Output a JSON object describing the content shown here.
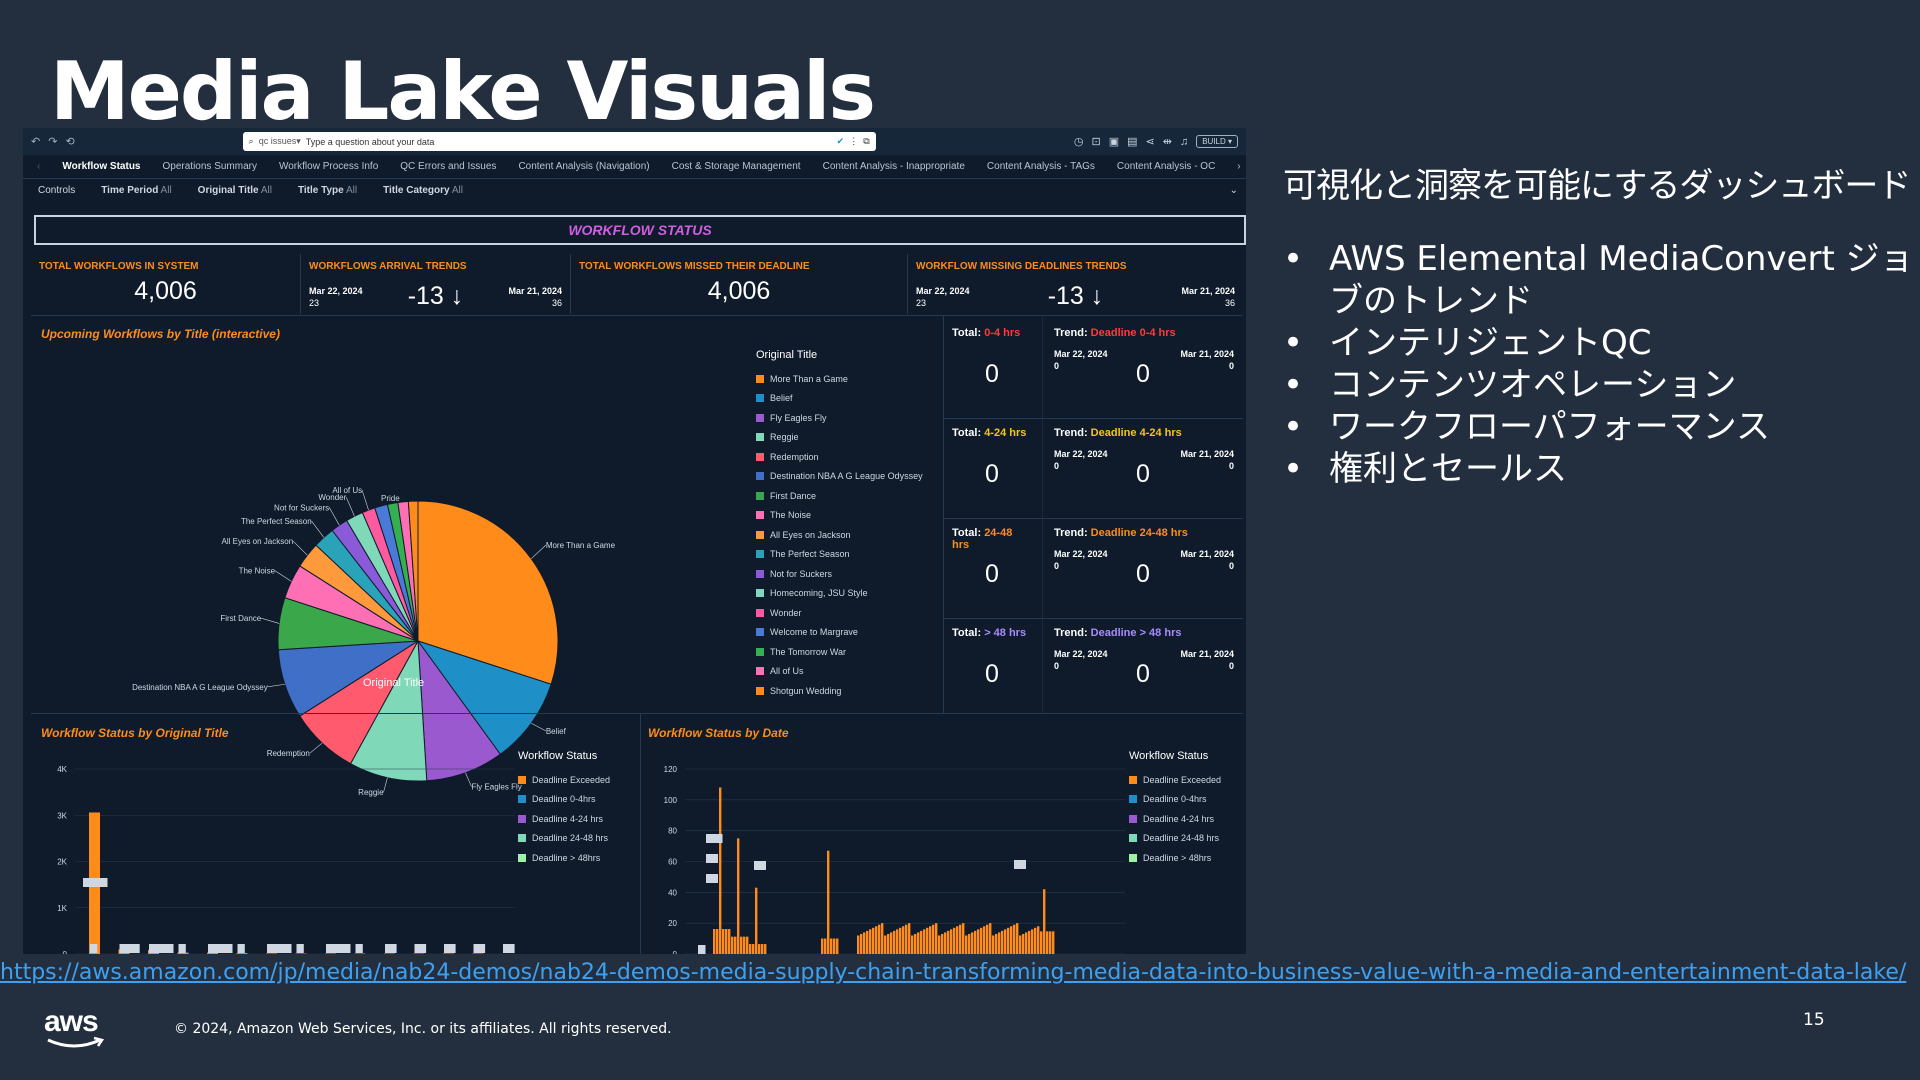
{
  "slide": {
    "title": "Media Lake Visuals",
    "heading": "可視化と洞察を可能にするダッシュボード",
    "bullets": [
      "AWS Elemental MediaConvert ジョブのトレンド",
      "インテリジェントQC",
      "コンテンツオペレーション",
      "ワークフローパフォーマンス",
      "権利とセールス"
    ],
    "url": "https://aws.amazon.com/jp/media/nab24-demos/nab24-demos-media-supply-chain-transforming-media-data-into-business-value-with-a-media-and-entertainment-data-lake/",
    "logo": "aws",
    "copyright": "© 2024, Amazon Web Services, Inc. or its affiliates. All rights reserved.",
    "page": "15"
  },
  "dashboard": {
    "search": {
      "tag": "qc issues▾",
      "placeholder": "Type a question about your data"
    },
    "build_label": "BUILD",
    "tabs": [
      "Workflow Status",
      "Operations Summary",
      "Workflow Process Info",
      "QC Errors and Issues",
      "Content Analysis (Navigation)",
      "Cost & Storage Management",
      "Content Analysis - Inappropriate",
      "Content Analysis - TAGs",
      "Content Analysis - OC"
    ],
    "controls": {
      "label": "Controls",
      "filters": [
        {
          "name": "Time Period",
          "value": "All"
        },
        {
          "name": "Original Title",
          "value": "All"
        },
        {
          "name": "Title Type",
          "value": "All"
        },
        {
          "name": "Title Category",
          "value": "All"
        }
      ]
    },
    "banner": "WORKFLOW STATUS",
    "kpis": {
      "total": {
        "label": "TOTAL WORKFLOWS IN SYSTEM",
        "value": "4,006"
      },
      "arrival": {
        "label": "WORKFLOWS ARRIVAL TRENDS",
        "left_date": "Mar 22, 2024",
        "left_val": "23",
        "value": "-13 ↓",
        "right_date": "Mar 21, 2024",
        "right_val": "36"
      },
      "missed": {
        "label": "TOTAL WORKFLOWS MISSED THEIR DEADLINE",
        "value": "4,006"
      },
      "missing": {
        "label": "WORKFLOW MISSING DEADLINES TRENDS",
        "left_date": "Mar 22, 2024",
        "left_val": "23",
        "value": "-13 ↓",
        "right_date": "Mar 21, 2024",
        "right_val": "36"
      }
    },
    "pie_panel": {
      "title": "Upcoming Workflows by Title",
      "title_suffix": "(interactive)",
      "axis_label": "Original Title"
    },
    "buckets": [
      {
        "total_label": "Total:",
        "range": "0-4 hrs",
        "trend_label": "Trend:",
        "trend": "Deadline 0-4 hrs",
        "color": "#ff3b3b",
        "d1": "Mar 22, 2024",
        "v1": "0",
        "d2": "Mar 21, 2024",
        "v2": "0",
        "value": "0",
        "trend_value": "0"
      },
      {
        "total_label": "Total:",
        "range": "4-24 hrs",
        "trend_label": "Trend:",
        "trend": "Deadline 4-24 hrs",
        "color": "#f5c518",
        "d1": "Mar 22, 2024",
        "v1": "0",
        "d2": "Mar 21, 2024",
        "v2": "0",
        "value": "0",
        "trend_value": "0"
      },
      {
        "total_label": "Total:",
        "range": "24-48 hrs",
        "trend_label": "Trend:",
        "trend": "Deadline 24-48 hrs",
        "color": "#ff8c1a",
        "d1": "Mar 22, 2024",
        "v1": "0",
        "d2": "Mar 21, 2024",
        "v2": "0",
        "value": "0",
        "trend_value": "0"
      },
      {
        "total_label": "Total:",
        "range": "> 48 hrs",
        "trend_label": "Trend:",
        "trend": "Deadline > 48 hrs",
        "color": "#a98bff",
        "d1": "Mar 22, 2024",
        "v1": "0",
        "d2": "Mar 21, 2024",
        "v2": "0",
        "value": "0",
        "trend_value": "0"
      }
    ],
    "bar1": {
      "title": "Workflow Status",
      "title_suffix": "by Original Title",
      "legend_title": "Workflow Status"
    },
    "bar2": {
      "title": "Workflow Status",
      "title_suffix": "by Date",
      "legend_title": "Workflow Status"
    },
    "status_legend": [
      {
        "name": "Deadline Exceeded",
        "color": "#ff8c1a"
      },
      {
        "name": "Deadline 0-4hrs",
        "color": "#1f8fc7"
      },
      {
        "name": "Deadline 4-24 hrs",
        "color": "#9b59d0"
      },
      {
        "name": "Deadline 24-48 hrs",
        "color": "#7fd8b8"
      },
      {
        "name": "Deadline > 48hrs",
        "color": "#9df2a8"
      }
    ]
  },
  "chart_data": [
    {
      "type": "pie",
      "title": "Upcoming Workflows by Title (interactive)",
      "legend_title": "Original Title",
      "categories": [
        "More Than a Game",
        "Belief",
        "Fly Eagles Fly",
        "Reggie",
        "Redemption",
        "Destination NBA A G League Odyssey",
        "First Dance",
        "The Noise",
        "All Eyes on Jackson",
        "The Perfect Season",
        "Not for Suckers",
        "Homecoming, JSU Style",
        "Wonder",
        "Welcome to Margrave",
        "The Tomorrow War",
        "All of Us",
        "Shotgun Wedding"
      ],
      "pie_labels": [
        "More Than a Game",
        "Belief",
        "Fly Eagles Fly",
        "Reggie",
        "Redemption",
        "Destination NBA A G League Odyssey",
        "First Dance",
        "The Noise",
        "All Eyes on Jackson",
        "The Perfect Season",
        "Not for Suckers",
        "Wonder",
        "All of Us",
        "Pride"
      ],
      "colors": [
        "#ff8c1a",
        "#1f8fc7",
        "#9b59d0",
        "#7fd8b8",
        "#ff5a6e",
        "#3f6fc7",
        "#3aa84a",
        "#ff6fb4",
        "#ff9a3c",
        "#2aa3b8",
        "#8a5ad8",
        "#7fd8b8",
        "#ff5aa0",
        "#4a7ad8",
        "#35b050",
        "#ff6fb4",
        "#ff8c1a"
      ],
      "values": [
        30,
        10,
        9,
        9,
        8,
        8,
        6,
        4,
        3,
        2.5,
        2,
        2,
        1.5,
        1.5,
        1.2,
        1.2,
        1.1
      ]
    },
    {
      "type": "bar",
      "title": "Workflow Status by Original Title",
      "ylim": [
        0,
        4000
      ],
      "yticks": [
        "0",
        "1K",
        "2K",
        "3K",
        "4K"
      ],
      "series": [
        {
          "name": "Deadline Exceeded",
          "values": [
            3060,
            100,
            90,
            30,
            30,
            20,
            10,
            10,
            10,
            10,
            10,
            10,
            10,
            10
          ]
        }
      ],
      "data_labels": [
        "3.06K",
        "0",
        "0.1K",
        "0.09K",
        "0",
        "0.03K",
        "0",
        "0.02K",
        "0",
        "0.01K",
        "0",
        "0K",
        "0K",
        "0K",
        "0K",
        "0K"
      ]
    },
    {
      "type": "bar",
      "title": "Workflow Status by Date",
      "ylim": [
        0,
        120
      ],
      "yticks": [
        "0",
        "20",
        "40",
        "60",
        "80",
        "100",
        "120"
      ],
      "series": [
        {
          "name": "Deadline Exceeded",
          "values": [
            0,
            108,
            75,
            43,
            0,
            0,
            0,
            67,
            0
          ]
        }
      ],
      "data_labels": [
        "108",
        "75",
        "43",
        "67",
        "42",
        "0"
      ]
    }
  ]
}
